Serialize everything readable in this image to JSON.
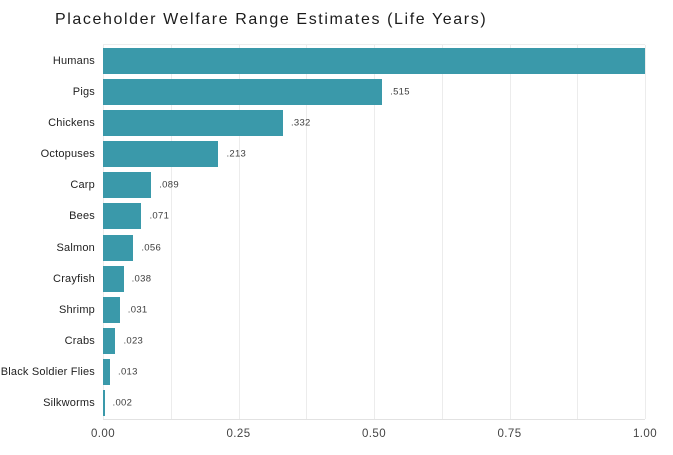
{
  "title": "Placeholder Welfare Range Estimates (Life Years)",
  "colors": {
    "bar": "#3a99aa",
    "grid": "#ececec",
    "axis_text": "#444444",
    "category_text": "#1f1f1f",
    "value_text": "#3d3d3d",
    "background": "#ffffff"
  },
  "chart_data": {
    "type": "bar",
    "orientation": "horizontal",
    "title": "Placeholder Welfare Range Estimates (Life Years)",
    "xlabel": "",
    "ylabel": "",
    "categories": [
      "Humans",
      "Pigs",
      "Chickens",
      "Octopuses",
      "Carp",
      "Bees",
      "Salmon",
      "Crayfish",
      "Shrimp",
      "Crabs",
      "Black Soldier Flies",
      "Silkworms"
    ],
    "values": [
      1.0,
      0.515,
      0.332,
      0.213,
      0.089,
      0.071,
      0.056,
      0.038,
      0.031,
      0.023,
      0.013,
      0.002
    ],
    "value_labels": [
      "",
      ".515",
      ".332",
      ".213",
      ".089",
      ".071",
      ".056",
      ".038",
      ".031",
      ".023",
      ".013",
      ".002"
    ],
    "xlim": [
      0,
      1.0
    ],
    "x_ticks": [
      {
        "value": 0.0,
        "label": "0.00"
      },
      {
        "value": 0.25,
        "label": "0.25"
      },
      {
        "value": 0.5,
        "label": "0.50"
      },
      {
        "value": 0.75,
        "label": "0.75"
      },
      {
        "value": 1.0,
        "label": "1.00"
      }
    ],
    "minor_grid_step": 0.125,
    "grid": true,
    "legend": false
  }
}
